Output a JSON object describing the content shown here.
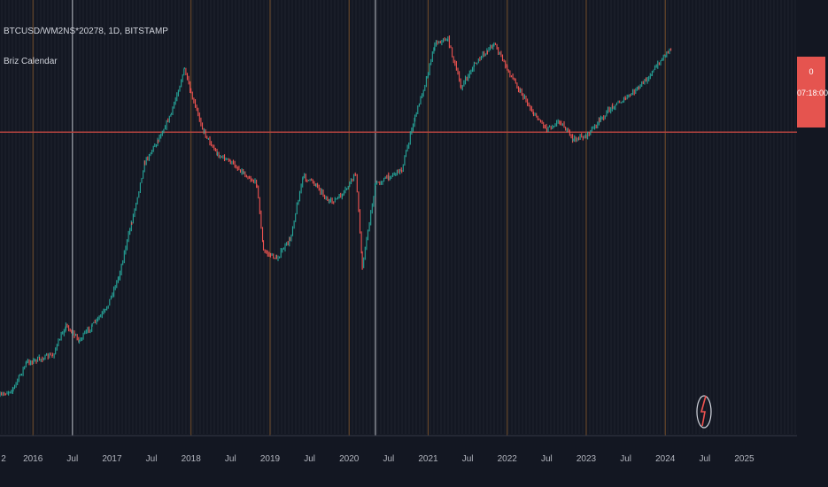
{
  "legend": {
    "symbol": "BTCUSD/WM2NS*20278, 1D, BITSTAMP",
    "indicator": "Briz Calendar"
  },
  "price_tag": {
    "value": "0",
    "countdown": "07:18:00"
  },
  "colors": {
    "background": "#131722",
    "up": "#26a69a",
    "down": "#ef5350",
    "reference_line": "#b2433f",
    "grid": "#2a2e39",
    "axis_text": "#b2b5be",
    "orange_marker": "#8a5a2b",
    "white_marker": "#d1d4dc"
  },
  "chart_data": {
    "type": "candlestick-line",
    "symbol": "BTCUSD/WM2NS*20278",
    "interval": "1D",
    "exchange": "BITSTAMP",
    "x_tick_labels": [
      "2",
      "2016",
      "Jul",
      "2017",
      "Jul",
      "2018",
      "Jul",
      "2019",
      "Jul",
      "2020",
      "Jul",
      "2021",
      "Jul",
      "2022",
      "Jul",
      "2023",
      "Jul",
      "2024",
      "Jul",
      "2025"
    ],
    "x_ticks": [
      "2015-07",
      "2016-01",
      "2016-07",
      "2017-01",
      "2017-07",
      "2018-01",
      "2018-07",
      "2019-01",
      "2019-07",
      "2020-01",
      "2020-07",
      "2021-01",
      "2021-07",
      "2022-01",
      "2022-07",
      "2023-01",
      "2023-07",
      "2024-01",
      "2024-07",
      "2025-01"
    ],
    "x_range": [
      "2015-08",
      "2025-09"
    ],
    "y_scale": "log (normalized, no labels)",
    "y_range": [
      0,
      100
    ],
    "reference_level": 74,
    "white_vertical_lines": [
      "2016-07",
      "2020-05"
    ],
    "orange_vertical_lines": [
      "2016-01",
      "2018-01",
      "2019-01",
      "2020-01",
      "2021-01",
      "2022-01",
      "2023-01",
      "2024-01"
    ],
    "series": [
      {
        "x": [
          "2015-08",
          "2015-10",
          "2015-12",
          "2016-02",
          "2016-04",
          "2016-06",
          "2016-08",
          "2016-10",
          "2016-12",
          "2017-02",
          "2017-04",
          "2017-06",
          "2017-08",
          "2017-10",
          "2017-12",
          "2018-01",
          "2018-03",
          "2018-05",
          "2018-07",
          "2018-09",
          "2018-11",
          "2018-12",
          "2019-02",
          "2019-04",
          "2019-06",
          "2019-08",
          "2019-10",
          "2019-12",
          "2020-02",
          "2020-03",
          "2020-05",
          "2020-07",
          "2020-09",
          "2020-11",
          "2021-01",
          "2021-02",
          "2021-04",
          "2021-06",
          "2021-08",
          "2021-10",
          "2021-11",
          "2022-01",
          "2022-03",
          "2022-05",
          "2022-07",
          "2022-09",
          "2022-11",
          "2023-01",
          "2023-03",
          "2023-05",
          "2023-07",
          "2023-09",
          "2023-11",
          "2024-01",
          "2024-02"
        ],
        "y": [
          3,
          5,
          12,
          13,
          14,
          22,
          18,
          22,
          26,
          35,
          50,
          66,
          72,
          79,
          91,
          84,
          74,
          68,
          66,
          63,
          60,
          42,
          40,
          45,
          62,
          60,
          55,
          57,
          63,
          38,
          60,
          62,
          64,
          78,
          90,
          98,
          99,
          86,
          92,
          96,
          98,
          91,
          85,
          79,
          75,
          77,
          72,
          73,
          77,
          81,
          83,
          86,
          90,
          95,
          97
        ]
      }
    ]
  }
}
